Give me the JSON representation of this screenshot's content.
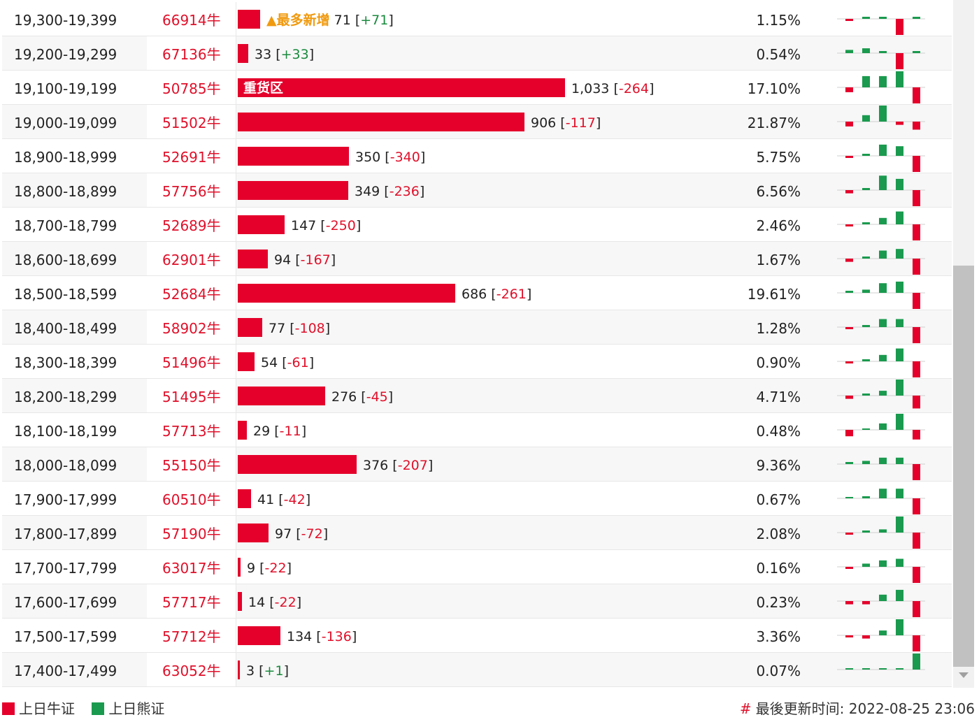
{
  "colors": {
    "bull": "#e4002b",
    "bear": "#1a9a4e",
    "text_red": "#e0102a",
    "text_green": "#1a8a3e",
    "hot": "#f09a0f"
  },
  "max_quantity": 1033,
  "rows": [
    {
      "range": "19,300-19,399",
      "code": "66914牛",
      "qty": "71",
      "change": "+71",
      "pct": "1.15%",
      "qty_num": 71,
      "hot_label": "▲最多新增",
      "spark": [
        -0.1,
        0.1,
        0.1,
        -1,
        0.1
      ]
    },
    {
      "range": "19,200-19,299",
      "code": "67136牛",
      "qty": "33",
      "change": "+33",
      "pct": "0.54%",
      "qty_num": 33,
      "spark": [
        0.2,
        0.3,
        0.1,
        -1,
        0.1
      ]
    },
    {
      "range": "19,100-19,199",
      "code": "50785牛",
      "qty": "1,033",
      "change": "-264",
      "pct": "17.10%",
      "qty_num": 1033,
      "bar_tag": "重货区",
      "spark": [
        -0.3,
        0.7,
        0.7,
        1,
        -1
      ]
    },
    {
      "range": "19,000-19,099",
      "code": "51502牛",
      "qty": "906",
      "change": "-117",
      "pct": "21.87%",
      "qty_num": 906,
      "spark": [
        -0.3,
        0.4,
        1,
        -0.2,
        -0.5
      ]
    },
    {
      "range": "18,900-18,999",
      "code": "52691牛",
      "qty": "350",
      "change": "-340",
      "pct": "5.75%",
      "qty_num": 350,
      "spark": [
        -0.1,
        0.1,
        0.7,
        0.6,
        -1
      ]
    },
    {
      "range": "18,800-18,899",
      "code": "57756牛",
      "qty": "349",
      "change": "-236",
      "pct": "6.56%",
      "qty_num": 349,
      "spark": [
        -0.2,
        0.1,
        0.9,
        0.7,
        -1
      ]
    },
    {
      "range": "18,700-18,799",
      "code": "52689牛",
      "qty": "147",
      "change": "-250",
      "pct": "2.46%",
      "qty_num": 147,
      "spark": [
        -0.1,
        0.1,
        0.4,
        0.8,
        -1
      ]
    },
    {
      "range": "18,600-18,699",
      "code": "62901牛",
      "qty": "94",
      "change": "-167",
      "pct": "1.67%",
      "qty_num": 94,
      "spark": [
        -0.2,
        0.1,
        0.5,
        0.6,
        -1
      ]
    },
    {
      "range": "18,500-18,599",
      "code": "52684牛",
      "qty": "686",
      "change": "-261",
      "pct": "19.61%",
      "qty_num": 686,
      "spark": [
        0.1,
        0.2,
        0.6,
        0.7,
        -1
      ]
    },
    {
      "range": "18,400-18,499",
      "code": "58902牛",
      "qty": "77",
      "change": "-108",
      "pct": "1.28%",
      "qty_num": 77,
      "spark": [
        -0.1,
        0.1,
        0.5,
        0.5,
        -1
      ]
    },
    {
      "range": "18,300-18,399",
      "code": "51496牛",
      "qty": "54",
      "change": "-61",
      "pct": "0.90%",
      "qty_num": 54,
      "spark": [
        -0.1,
        0.1,
        0.4,
        0.8,
        -1
      ]
    },
    {
      "range": "18,200-18,299",
      "code": "51495牛",
      "qty": "276",
      "change": "-45",
      "pct": "4.71%",
      "qty_num": 276,
      "spark": [
        -0.2,
        0.1,
        0.3,
        1,
        -0.8
      ]
    },
    {
      "range": "18,100-18,199",
      "code": "57713牛",
      "qty": "29",
      "change": "-11",
      "pct": "0.48%",
      "qty_num": 29,
      "spark": [
        -0.4,
        0,
        0.4,
        1,
        -0.6
      ]
    },
    {
      "range": "18,000-18,099",
      "code": "55150牛",
      "qty": "376",
      "change": "-207",
      "pct": "9.36%",
      "qty_num": 376,
      "spark": [
        0.1,
        0.2,
        0.4,
        0.4,
        -1
      ]
    },
    {
      "range": "17,900-17,999",
      "code": "60510牛",
      "qty": "41",
      "change": "-42",
      "pct": "0.67%",
      "qty_num": 41,
      "spark": [
        0,
        0.1,
        0.6,
        0.6,
        -1
      ]
    },
    {
      "range": "17,800-17,899",
      "code": "57190牛",
      "qty": "97",
      "change": "-72",
      "pct": "2.08%",
      "qty_num": 97,
      "spark": [
        -0.1,
        0.1,
        0.2,
        1,
        -1
      ]
    },
    {
      "range": "17,700-17,799",
      "code": "63017牛",
      "qty": "9",
      "change": "-22",
      "pct": "0.16%",
      "qty_num": 9,
      "spark": [
        -0.1,
        0.2,
        0.4,
        0.5,
        -1
      ]
    },
    {
      "range": "17,600-17,699",
      "code": "57717牛",
      "qty": "14",
      "change": "-22",
      "pct": "0.23%",
      "qty_num": 14,
      "spark": [
        -0.2,
        -0.2,
        0.4,
        0.7,
        -1
      ]
    },
    {
      "range": "17,500-17,599",
      "code": "57712牛",
      "qty": "134",
      "change": "-136",
      "pct": "3.36%",
      "qty_num": 134,
      "spark": [
        -0.1,
        -0.2,
        0.3,
        1,
        -1
      ]
    },
    {
      "range": "17,400-17,499",
      "code": "63052牛",
      "qty": "3",
      "change": "+1",
      "pct": "0.07%",
      "qty_num": 3,
      "spark": [
        0,
        0,
        0,
        0,
        1
      ]
    }
  ],
  "legend": {
    "bull_label": "上日牛证",
    "bear_label": "上日熊证"
  },
  "footer": {
    "hash": "#",
    "updated_text": "最後更新时间: 2022-08-25 23:06"
  }
}
